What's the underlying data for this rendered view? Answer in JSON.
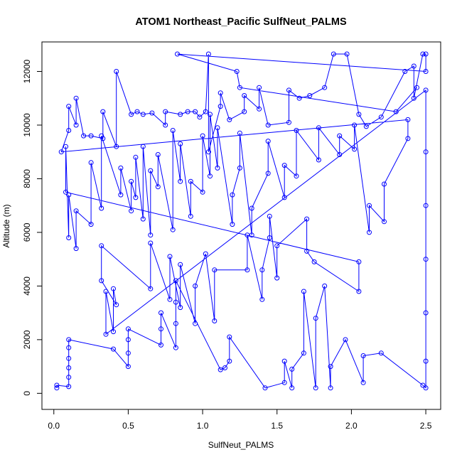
{
  "chart_data": {
    "type": "scatter",
    "title": "ATOM1 Northeast_Pacific SulfNeut_PALMS",
    "xlabel": "SulfNeut_PALMS",
    "ylabel": "Altitude (m)",
    "xlim": [
      0,
      2.5
    ],
    "ylim": [
      0,
      12800
    ],
    "x_ticks": [
      0,
      0.5,
      1,
      1.5,
      2,
      2.5
    ],
    "x_tick_labels": [
      "0.0",
      "0.5",
      "1.0",
      "1.5",
      "2.0",
      "2.5"
    ],
    "y_ticks": [
      0,
      2000,
      4000,
      6000,
      8000,
      10000,
      12000
    ],
    "y_tick_labels": [
      "0",
      "2000",
      "4000",
      "6000",
      "8000",
      "10000",
      "12000"
    ],
    "grid": false,
    "legend": "none",
    "marker": "open-circle",
    "line_connected": true,
    "series_color": "#0000ff",
    "series": [
      {
        "name": "",
        "points": [
          [
            0.02,
            200
          ],
          [
            0.02,
            300
          ],
          [
            0.1,
            250
          ],
          [
            0.1,
            600
          ],
          [
            0.1,
            950
          ],
          [
            0.1,
            1300
          ],
          [
            0.1,
            1700
          ],
          [
            0.1,
            2000
          ],
          [
            0.4,
            1650
          ],
          [
            0.5,
            1000
          ],
          [
            0.5,
            1500
          ],
          [
            0.5,
            2000
          ],
          [
            0.5,
            2400
          ],
          [
            0.72,
            1800
          ],
          [
            0.72,
            2400
          ],
          [
            0.72,
            3000
          ],
          [
            0.82,
            1700
          ],
          [
            0.82,
            2600
          ],
          [
            0.82,
            3400
          ],
          [
            0.82,
            4200
          ],
          [
            1.12,
            880
          ],
          [
            1.15,
            950
          ],
          [
            1.18,
            1200
          ],
          [
            1.18,
            2100
          ],
          [
            1.42,
            200
          ],
          [
            1.55,
            400
          ],
          [
            1.55,
            1200
          ],
          [
            1.6,
            200
          ],
          [
            1.6,
            900
          ],
          [
            1.68,
            1500
          ],
          [
            1.68,
            3800
          ],
          [
            1.76,
            200
          ],
          [
            1.76,
            2800
          ],
          [
            1.82,
            4000
          ],
          [
            1.86,
            200
          ],
          [
            1.86,
            1000
          ],
          [
            1.96,
            2000
          ],
          [
            2.08,
            400
          ],
          [
            2.08,
            1400
          ],
          [
            2.2,
            1500
          ],
          [
            2.48,
            300
          ],
          [
            2.5,
            200
          ],
          [
            2.5,
            1200
          ],
          [
            2.5,
            3000
          ],
          [
            2.5,
            5000
          ],
          [
            2.5,
            7000
          ],
          [
            2.5,
            9000
          ],
          [
            2.5,
            11300
          ],
          [
            0.35,
            2200
          ],
          [
            0.35,
            3800
          ],
          [
            0.4,
            2300
          ],
          [
            0.4,
            3900
          ],
          [
            0.42,
            3300
          ],
          [
            0.32,
            4200
          ],
          [
            0.32,
            5500
          ],
          [
            0.65,
            3900
          ],
          [
            0.65,
            5600
          ],
          [
            0.78,
            3500
          ],
          [
            0.78,
            5100
          ],
          [
            0.85,
            3200
          ],
          [
            0.85,
            4800
          ],
          [
            0.95,
            2600
          ],
          [
            0.95,
            4000
          ],
          [
            1.02,
            5200
          ],
          [
            1.08,
            2700
          ],
          [
            1.08,
            4600
          ],
          [
            1.3,
            4600
          ],
          [
            1.3,
            5900
          ],
          [
            1.4,
            3500
          ],
          [
            1.4,
            4600
          ],
          [
            1.45,
            5800
          ],
          [
            1.45,
            6600
          ],
          [
            1.5,
            4300
          ],
          [
            1.5,
            5500
          ],
          [
            1.7,
            6500
          ],
          [
            1.7,
            5300
          ],
          [
            1.75,
            4900
          ],
          [
            2.05,
            3800
          ],
          [
            2.05,
            4900
          ],
          [
            0.08,
            7500
          ],
          [
            0.08,
            9200
          ],
          [
            0.1,
            5800
          ],
          [
            0.1,
            7400
          ],
          [
            0.15,
            5400
          ],
          [
            0.15,
            6800
          ],
          [
            0.25,
            6300
          ],
          [
            0.25,
            8600
          ],
          [
            0.32,
            6900
          ],
          [
            0.32,
            9600
          ],
          [
            0.45,
            7400
          ],
          [
            0.45,
            8400
          ],
          [
            0.52,
            6800
          ],
          [
            0.52,
            7900
          ],
          [
            0.55,
            7300
          ],
          [
            0.55,
            8800
          ],
          [
            0.6,
            6500
          ],
          [
            0.6,
            9200
          ],
          [
            0.65,
            5900
          ],
          [
            0.65,
            8300
          ],
          [
            0.7,
            7700
          ],
          [
            0.7,
            8900
          ],
          [
            0.8,
            6100
          ],
          [
            0.8,
            9800
          ],
          [
            0.85,
            7900
          ],
          [
            0.85,
            9300
          ],
          [
            0.92,
            6600
          ],
          [
            0.92,
            7900
          ],
          [
            1.0,
            7500
          ],
          [
            1.0,
            9600
          ],
          [
            1.05,
            8100
          ],
          [
            1.05,
            10400
          ],
          [
            1.1,
            8400
          ],
          [
            1.1,
            9900
          ],
          [
            1.2,
            6300
          ],
          [
            1.2,
            7400
          ],
          [
            1.25,
            8400
          ],
          [
            1.25,
            9700
          ],
          [
            1.33,
            5900
          ],
          [
            1.33,
            6900
          ],
          [
            1.44,
            8200
          ],
          [
            1.44,
            9400
          ],
          [
            1.55,
            7300
          ],
          [
            1.55,
            8500
          ],
          [
            1.63,
            8100
          ],
          [
            1.63,
            9800
          ],
          [
            1.78,
            8700
          ],
          [
            1.78,
            9900
          ],
          [
            1.92,
            8900
          ],
          [
            1.92,
            9600
          ],
          [
            2.02,
            9100
          ],
          [
            2.02,
            10000
          ],
          [
            2.12,
            6000
          ],
          [
            2.12,
            7000
          ],
          [
            2.22,
            6400
          ],
          [
            2.22,
            7800
          ],
          [
            2.38,
            9500
          ],
          [
            2.38,
            10200
          ],
          [
            0.05,
            9000
          ],
          [
            0.1,
            9800
          ],
          [
            0.1,
            10700
          ],
          [
            0.15,
            10000
          ],
          [
            0.15,
            11000
          ],
          [
            0.2,
            9600
          ],
          [
            0.25,
            9600
          ],
          [
            0.33,
            9500
          ],
          [
            0.33,
            10500
          ],
          [
            0.42,
            9200
          ],
          [
            0.42,
            12000
          ],
          [
            0.52,
            10400
          ],
          [
            0.56,
            10500
          ],
          [
            0.6,
            10400
          ],
          [
            0.66,
            10450
          ],
          [
            0.75,
            10000
          ],
          [
            0.75,
            10500
          ],
          [
            0.85,
            10400
          ],
          [
            0.9,
            10500
          ],
          [
            0.95,
            10500
          ],
          [
            0.98,
            10300
          ],
          [
            1.02,
            10500
          ],
          [
            1.04,
            12650
          ],
          [
            1.04,
            9000
          ],
          [
            1.12,
            10700
          ],
          [
            1.12,
            11200
          ],
          [
            1.18,
            10200
          ],
          [
            1.28,
            10500
          ],
          [
            1.28,
            11100
          ],
          [
            1.38,
            10600
          ],
          [
            1.38,
            11400
          ],
          [
            1.44,
            10000
          ],
          [
            1.58,
            10100
          ],
          [
            1.58,
            11300
          ],
          [
            1.65,
            11000
          ],
          [
            1.72,
            11100
          ],
          [
            1.82,
            11400
          ],
          [
            1.88,
            12650
          ],
          [
            1.97,
            12650
          ],
          [
            2.05,
            10400
          ],
          [
            2.1,
            9950
          ],
          [
            2.2,
            10300
          ],
          [
            2.36,
            12000
          ],
          [
            2.42,
            12200
          ],
          [
            2.42,
            11000
          ],
          [
            2.48,
            12650
          ],
          [
            2.5,
            12650
          ],
          [
            2.5,
            12000
          ],
          [
            0.83,
            12650
          ],
          [
            1.23,
            12000
          ],
          [
            1.25,
            11400
          ],
          [
            2.3,
            10500
          ],
          [
            2.44,
            11400
          ]
        ]
      }
    ]
  }
}
